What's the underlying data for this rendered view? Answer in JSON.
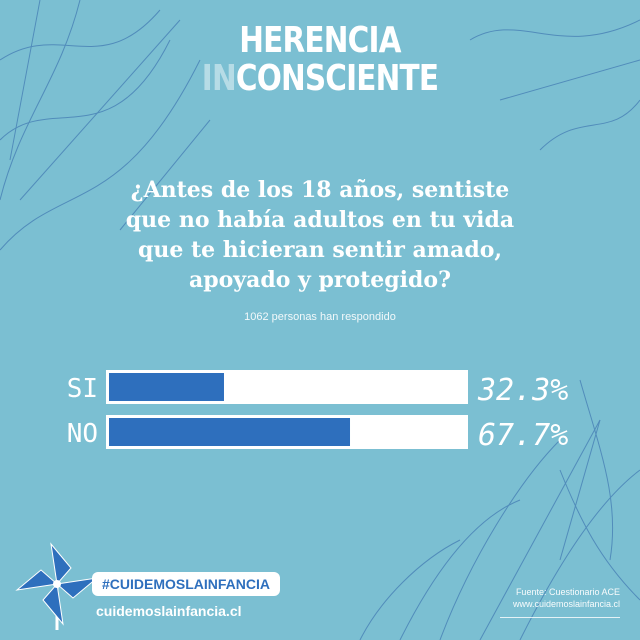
{
  "logo": {
    "line1": "HERENCIA",
    "line2_faded": "IN",
    "line2_rest": "CONSCIENTE"
  },
  "question": {
    "line1": "¿Antes de los 18 años, sentiste",
    "line2": "que no había adultos en tu vida",
    "line3": "que te hicieran sentir amado,",
    "line4": "apoyado y protegido?"
  },
  "respondents": "1062 personas han respondido",
  "chart_data": {
    "type": "bar",
    "orientation": "horizontal",
    "categories": [
      "SI",
      "NO"
    ],
    "values": [
      32.3,
      67.7
    ],
    "value_labels": [
      "32.3%",
      "67.7%"
    ],
    "xlim": [
      0,
      100
    ],
    "title": "",
    "xlabel": "",
    "ylabel": "",
    "bar_color": "#2e6fbd",
    "track_color": "#ffffff"
  },
  "footer": {
    "hashtag": "#CUIDEMOSLAINFANCIA",
    "website": "cuidemoslainfancia.cl",
    "source_line1": "Fuente: Cuestionario ACE",
    "source_line2": "www.cuidemoslainfancia.cl"
  },
  "icons": {
    "pinwheel": "pinwheel-icon"
  },
  "colors": {
    "background": "#7bbfd2",
    "accent": "#2e6fbd",
    "text": "#ffffff"
  }
}
